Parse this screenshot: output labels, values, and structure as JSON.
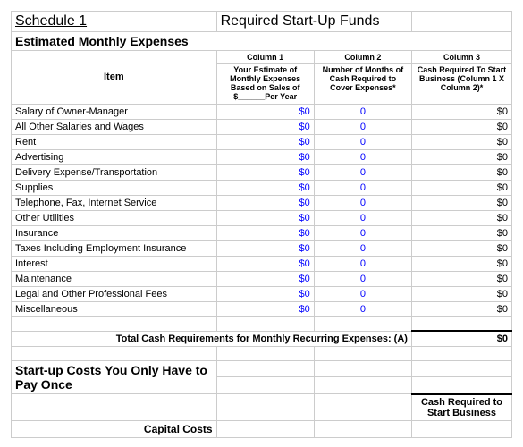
{
  "colors": {
    "link_blue": "#0000ff",
    "border": "#cccccc"
  },
  "header": {
    "schedule": "Schedule 1",
    "title": "Required Start-Up Funds"
  },
  "section1": {
    "heading": "Estimated Monthly Expenses",
    "columns": {
      "item_label": "Item",
      "c1_label": "Column 1",
      "c2_label": "Column 2",
      "c3_label": "Column 3",
      "c1_desc": "Your Estimate of Monthly Expenses Based on Sales of $______Per Year",
      "c2_desc": "Number of Months of Cash Required to Cover Expenses*",
      "c3_desc": "Cash Required To Start Business (Column 1 X Column 2)*"
    },
    "rows": [
      {
        "item": "Salary of Owner-Manager",
        "c1": "$0",
        "c2": "0",
        "c3": "$0"
      },
      {
        "item": "All Other Salaries and Wages",
        "c1": "$0",
        "c2": "0",
        "c3": "$0"
      },
      {
        "item": "Rent",
        "c1": "$0",
        "c2": "0",
        "c3": "$0"
      },
      {
        "item": "Advertising",
        "c1": "$0",
        "c2": "0",
        "c3": "$0"
      },
      {
        "item": "Delivery Expense/Transportation",
        "c1": "$0",
        "c2": "0",
        "c3": "$0"
      },
      {
        "item": "Supplies",
        "c1": "$0",
        "c2": "0",
        "c3": "$0"
      },
      {
        "item": "Telephone, Fax, Internet Service",
        "c1": "$0",
        "c2": "0",
        "c3": "$0"
      },
      {
        "item": "Other Utilities",
        "c1": "$0",
        "c2": "0",
        "c3": "$0"
      },
      {
        "item": "Insurance",
        "c1": "$0",
        "c2": "0",
        "c3": "$0"
      },
      {
        "item": "Taxes Including Employment Insurance",
        "c1": "$0",
        "c2": "0",
        "c3": "$0"
      },
      {
        "item": "Interest",
        "c1": "$0",
        "c2": "0",
        "c3": "$0"
      },
      {
        "item": "Maintenance",
        "c1": "$0",
        "c2": "0",
        "c3": "$0"
      },
      {
        "item": "Legal and Other Professional Fees",
        "c1": "$0",
        "c2": "0",
        "c3": "$0"
      },
      {
        "item": "Miscellaneous",
        "c1": "$0",
        "c2": "0",
        "c3": "$0"
      }
    ],
    "total": {
      "label": "Total Cash Requirements for Monthly Recurring Expenses: (A)",
      "value": "$0"
    }
  },
  "section2": {
    "heading": "Start-up Costs You Only Have to Pay Once",
    "cash_req_label": "Cash Required to Start Business",
    "capital_costs": "Capital Costs"
  }
}
